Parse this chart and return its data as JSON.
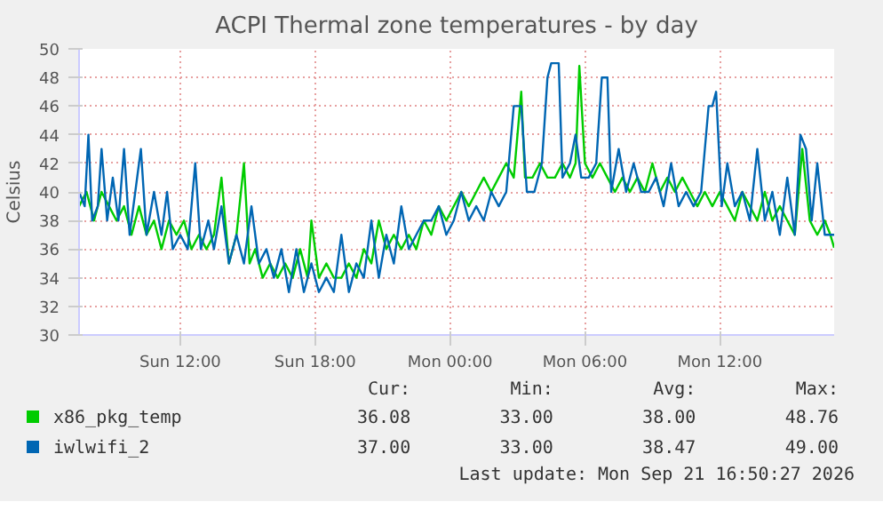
{
  "chart_data": {
    "type": "line",
    "title": "ACPI Thermal zone temperatures - by day",
    "ylabel": "Celsius",
    "xlim": [
      "2026-09-20T07:30",
      "2026-09-21T17:05"
    ],
    "xticks": [
      {
        "value": "2026-09-20T12:00",
        "label": "Sun 12:00"
      },
      {
        "value": "2026-09-20T18:00",
        "label": "Sun 18:00"
      },
      {
        "value": "2026-09-21T00:00",
        "label": "Mon 00:00"
      },
      {
        "value": "2026-09-21T06:00",
        "label": "Mon 06:00"
      },
      {
        "value": "2026-09-21T12:00",
        "label": "Mon 12:00"
      }
    ],
    "ylim": [
      30,
      50
    ],
    "yticks": [
      30,
      32,
      34,
      36,
      38,
      40,
      42,
      44,
      46,
      48,
      50
    ],
    "grid": true,
    "legend": "bottom",
    "annotations": [
      "Cur:",
      "Min:",
      "Avg:",
      "Max:",
      "36.08",
      "33.00",
      "38.00",
      "48.76",
      "37.00",
      "33.00",
      "38.47",
      "49.00",
      "Last update: Mon Sep 21 16:50:27 2026"
    ],
    "series": [
      {
        "name": "x86_pkg_temp",
        "color": "#00cc00",
        "x": [
          "2026-09-20T07:30",
          "2026-09-20T07:50",
          "2026-09-20T08:10",
          "2026-09-20T08:30",
          "2026-09-20T08:50",
          "2026-09-20T09:10",
          "2026-09-20T09:30",
          "2026-09-20T09:50",
          "2026-09-20T10:10",
          "2026-09-20T10:30",
          "2026-09-20T10:50",
          "2026-09-20T11:10",
          "2026-09-20T11:30",
          "2026-09-20T11:50",
          "2026-09-20T12:10",
          "2026-09-20T12:30",
          "2026-09-20T12:50",
          "2026-09-20T13:10",
          "2026-09-20T13:30",
          "2026-09-20T13:50",
          "2026-09-20T14:10",
          "2026-09-20T14:30",
          "2026-09-20T14:50",
          "2026-09-20T15:05",
          "2026-09-20T15:20",
          "2026-09-20T15:40",
          "2026-09-20T16:00",
          "2026-09-20T16:20",
          "2026-09-20T16:40",
          "2026-09-20T17:00",
          "2026-09-20T17:20",
          "2026-09-20T17:40",
          "2026-09-20T17:50",
          "2026-09-20T18:10",
          "2026-09-20T18:30",
          "2026-09-20T18:50",
          "2026-09-20T19:10",
          "2026-09-20T19:30",
          "2026-09-20T19:50",
          "2026-09-20T20:10",
          "2026-09-20T20:30",
          "2026-09-20T20:50",
          "2026-09-20T21:10",
          "2026-09-20T21:30",
          "2026-09-20T21:50",
          "2026-09-20T22:10",
          "2026-09-20T22:30",
          "2026-09-20T22:50",
          "2026-09-20T23:10",
          "2026-09-20T23:30",
          "2026-09-20T23:50",
          "2026-09-21T00:10",
          "2026-09-21T00:30",
          "2026-09-21T00:50",
          "2026-09-21T01:10",
          "2026-09-21T01:30",
          "2026-09-21T01:50",
          "2026-09-21T02:10",
          "2026-09-21T02:30",
          "2026-09-21T02:50",
          "2026-09-21T03:10",
          "2026-09-21T03:20",
          "2026-09-21T03:40",
          "2026-09-21T04:00",
          "2026-09-21T04:20",
          "2026-09-21T04:40",
          "2026-09-21T05:00",
          "2026-09-21T05:20",
          "2026-09-21T05:35",
          "2026-09-21T05:45",
          "2026-09-21T06:00",
          "2026-09-21T06:20",
          "2026-09-21T06:40",
          "2026-09-21T07:00",
          "2026-09-21T07:20",
          "2026-09-21T07:40",
          "2026-09-21T08:00",
          "2026-09-21T08:20",
          "2026-09-21T08:40",
          "2026-09-21T09:00",
          "2026-09-21T09:20",
          "2026-09-21T09:40",
          "2026-09-21T10:00",
          "2026-09-21T10:20",
          "2026-09-21T10:40",
          "2026-09-21T11:00",
          "2026-09-21T11:20",
          "2026-09-21T11:40",
          "2026-09-21T12:00",
          "2026-09-21T12:20",
          "2026-09-21T12:40",
          "2026-09-21T13:00",
          "2026-09-21T13:20",
          "2026-09-21T13:40",
          "2026-09-21T14:00",
          "2026-09-21T14:20",
          "2026-09-21T14:40",
          "2026-09-21T15:00",
          "2026-09-21T15:20",
          "2026-09-21T15:40",
          "2026-09-21T16:00",
          "2026-09-21T16:20",
          "2026-09-21T16:40",
          "2026-09-21T16:55",
          "2026-09-21T17:05"
        ],
        "values": [
          39,
          40,
          38,
          40,
          39,
          38,
          39,
          37,
          39,
          37,
          38,
          36,
          38,
          37,
          38,
          36,
          37,
          36,
          37,
          41,
          35,
          37,
          42,
          35,
          36,
          34,
          35,
          34,
          35,
          34,
          36,
          34,
          38,
          34,
          35,
          34,
          34,
          35,
          34,
          36,
          35,
          38,
          36,
          37,
          36,
          37,
          36,
          38,
          37,
          39,
          38,
          39,
          40,
          39,
          40,
          41,
          40,
          41,
          42,
          41,
          47,
          41,
          41,
          42,
          41,
          41,
          42,
          41,
          42,
          48.8,
          42,
          41,
          42,
          41,
          40,
          41,
          40,
          41,
          40,
          42,
          40,
          41,
          40,
          41,
          40,
          39,
          40,
          39,
          40,
          39,
          38,
          40,
          39,
          38,
          40,
          38,
          39,
          38,
          37,
          43,
          38,
          37,
          38,
          37,
          36.1
        ]
      },
      {
        "name": "iwlwifi_2",
        "color": "#0066b3",
        "x": [
          "2026-09-20T07:30",
          "2026-09-20T07:45",
          "2026-09-20T07:55",
          "2026-09-20T08:05",
          "2026-09-20T08:20",
          "2026-09-20T08:30",
          "2026-09-20T08:45",
          "2026-09-20T09:00",
          "2026-09-20T09:15",
          "2026-09-20T09:30",
          "2026-09-20T09:45",
          "2026-09-20T10:00",
          "2026-09-20T10:15",
          "2026-09-20T10:30",
          "2026-09-20T10:50",
          "2026-09-20T11:10",
          "2026-09-20T11:25",
          "2026-09-20T11:40",
          "2026-09-20T12:00",
          "2026-09-20T12:20",
          "2026-09-20T12:40",
          "2026-09-20T12:55",
          "2026-09-20T13:15",
          "2026-09-20T13:30",
          "2026-09-20T13:50",
          "2026-09-20T14:10",
          "2026-09-20T14:30",
          "2026-09-20T14:50",
          "2026-09-20T15:10",
          "2026-09-20T15:30",
          "2026-09-20T15:50",
          "2026-09-20T16:10",
          "2026-09-20T16:30",
          "2026-09-20T16:50",
          "2026-09-20T17:10",
          "2026-09-20T17:30",
          "2026-09-20T17:50",
          "2026-09-20T18:10",
          "2026-09-20T18:30",
          "2026-09-20T18:50",
          "2026-09-20T19:10",
          "2026-09-20T19:30",
          "2026-09-20T19:50",
          "2026-09-20T20:10",
          "2026-09-20T20:30",
          "2026-09-20T20:50",
          "2026-09-20T21:10",
          "2026-09-20T21:30",
          "2026-09-20T21:50",
          "2026-09-20T22:10",
          "2026-09-20T22:30",
          "2026-09-20T22:50",
          "2026-09-20T23:10",
          "2026-09-20T23:30",
          "2026-09-20T23:50",
          "2026-09-21T00:10",
          "2026-09-21T00:30",
          "2026-09-21T00:50",
          "2026-09-21T01:10",
          "2026-09-21T01:30",
          "2026-09-21T01:50",
          "2026-09-21T02:10",
          "2026-09-21T02:30",
          "2026-09-21T02:50",
          "2026-09-21T03:10",
          "2026-09-21T03:25",
          "2026-09-21T03:45",
          "2026-09-21T04:05",
          "2026-09-21T04:20",
          "2026-09-21T04:30",
          "2026-09-21T04:50",
          "2026-09-21T05:00",
          "2026-09-21T05:20",
          "2026-09-21T05:35",
          "2026-09-21T05:50",
          "2026-09-21T06:10",
          "2026-09-21T06:30",
          "2026-09-21T06:45",
          "2026-09-21T07:00",
          "2026-09-21T07:10",
          "2026-09-21T07:30",
          "2026-09-21T07:50",
          "2026-09-21T08:10",
          "2026-09-21T08:30",
          "2026-09-21T08:50",
          "2026-09-21T09:10",
          "2026-09-21T09:30",
          "2026-09-21T09:50",
          "2026-09-21T10:10",
          "2026-09-21T10:30",
          "2026-09-21T10:50",
          "2026-09-21T11:10",
          "2026-09-21T11:30",
          "2026-09-21T11:40",
          "2026-09-21T11:50",
          "2026-09-21T12:05",
          "2026-09-21T12:20",
          "2026-09-21T12:40",
          "2026-09-21T13:00",
          "2026-09-21T13:20",
          "2026-09-21T13:40",
          "2026-09-21T14:00",
          "2026-09-21T14:20",
          "2026-09-21T14:40",
          "2026-09-21T15:00",
          "2026-09-21T15:20",
          "2026-09-21T15:35",
          "2026-09-21T15:50",
          "2026-09-21T16:05",
          "2026-09-21T16:20",
          "2026-09-21T16:40",
          "2026-09-21T17:05"
        ],
        "values": [
          40,
          39,
          44,
          38,
          39,
          43,
          38,
          41,
          38,
          43,
          37,
          40,
          43,
          37,
          40,
          37,
          40,
          36,
          37,
          36,
          42,
          36,
          38,
          36,
          39,
          35,
          37,
          35,
          39,
          35,
          36,
          34,
          36,
          33,
          36,
          33,
          35,
          33,
          34,
          33,
          37,
          33,
          35,
          34,
          38,
          34,
          37,
          35,
          39,
          36,
          37,
          38,
          38,
          39,
          37,
          38,
          40,
          38,
          39,
          38,
          40,
          39,
          40,
          46,
          46,
          40,
          40,
          42,
          48,
          49,
          49,
          41,
          42,
          44,
          41,
          41,
          42,
          48,
          48,
          40,
          43,
          40,
          42,
          40,
          40,
          41,
          39,
          42,
          39,
          40,
          39,
          40,
          46,
          46,
          47,
          39,
          42,
          39,
          40,
          38,
          43,
          38,
          40,
          37,
          41,
          37,
          44,
          43,
          38,
          42,
          37,
          37
        ]
      }
    ]
  }
}
